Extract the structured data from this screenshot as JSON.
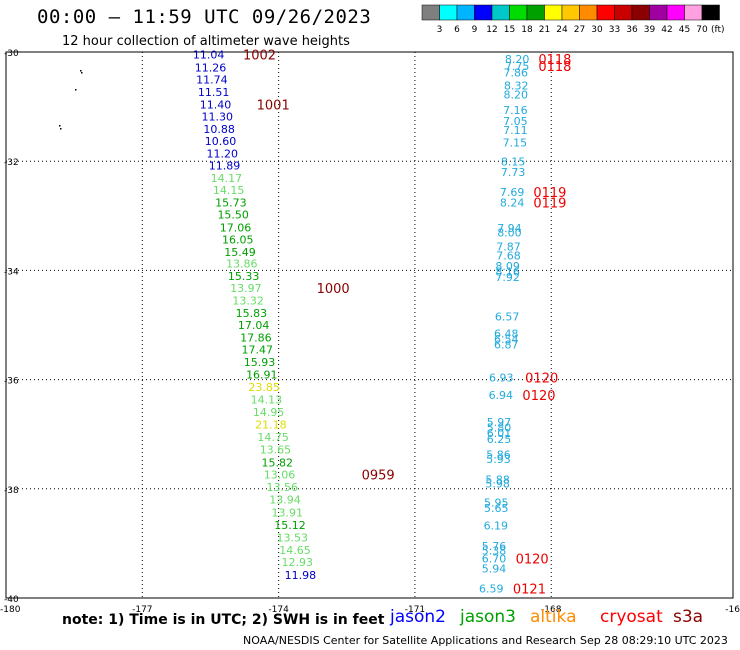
{
  "title": "00:00 — 11:59 UTC 09/26/2023",
  "subtitle": "12 hour collection of altimeter wave heights",
  "colorbar": {
    "colors": [
      "#7f7f7f",
      "#00ffff",
      "#00b4ff",
      "#0000ff",
      "#00c8c8",
      "#00dc00",
      "#00a000",
      "#ffff00",
      "#ffc800",
      "#ff8c00",
      "#ff0000",
      "#c80000",
      "#8b0000",
      "#a000a0",
      "#ff00ff",
      "#ffa0e0",
      "#000000"
    ],
    "labels": [
      "3",
      "6",
      "9",
      "12",
      "15",
      "18",
      "21",
      "24",
      "27",
      "30",
      "33",
      "36",
      "39",
      "42",
      "45",
      "70"
    ],
    "unit": "(ft)"
  },
  "axes": {
    "lat_labels": [
      "-30",
      "-32",
      "-34",
      "-36",
      "-38",
      "-40"
    ],
    "lon_labels": [
      "-180",
      "-177",
      "-174",
      "-171",
      "-168",
      "-16"
    ]
  },
  "observations": [
    {
      "t": "11.04",
      "c": "#0000c8",
      "lon": -175.54,
      "lat": -30.05
    },
    {
      "t": "11.26",
      "c": "#0000c8",
      "lon": -175.5,
      "lat": -30.28
    },
    {
      "t": "11.74",
      "c": "#0000c8",
      "lon": -175.47,
      "lat": -30.5
    },
    {
      "t": "11.51",
      "c": "#0000c8",
      "lon": -175.43,
      "lat": -30.73
    },
    {
      "t": "11.40",
      "c": "#0000c8",
      "lon": -175.39,
      "lat": -30.96
    },
    {
      "t": "11.30",
      "c": "#0000c8",
      "lon": -175.35,
      "lat": -31.18
    },
    {
      "t": "10.88",
      "c": "#0000c8",
      "lon": -175.31,
      "lat": -31.41
    },
    {
      "t": "10.60",
      "c": "#0000c8",
      "lon": -175.28,
      "lat": -31.63
    },
    {
      "t": "11.20",
      "c": "#0000c8",
      "lon": -175.24,
      "lat": -31.86
    },
    {
      "t": "11.89",
      "c": "#0000c8",
      "lon": -175.19,
      "lat": -32.08
    },
    {
      "t": "14.17",
      "c": "#66dd66",
      "lon": -175.15,
      "lat": -32.31
    },
    {
      "t": "14.15",
      "c": "#66dd66",
      "lon": -175.1,
      "lat": -32.53
    },
    {
      "t": "15.73",
      "c": "#00a000",
      "lon": -175.05,
      "lat": -32.76
    },
    {
      "t": "15.50",
      "c": "#00a000",
      "lon": -175.0,
      "lat": -32.98
    },
    {
      "t": "17.06",
      "c": "#00a000",
      "lon": -174.95,
      "lat": -33.21
    },
    {
      "t": "16.05",
      "c": "#00a000",
      "lon": -174.9,
      "lat": -33.43
    },
    {
      "t": "15.49",
      "c": "#00a000",
      "lon": -174.85,
      "lat": -33.66
    },
    {
      "t": "13.86",
      "c": "#66dd66",
      "lon": -174.81,
      "lat": -33.87
    },
    {
      "t": "15.33",
      "c": "#00a000",
      "lon": -174.77,
      "lat": -34.1
    },
    {
      "t": "13.97",
      "c": "#66dd66",
      "lon": -174.72,
      "lat": -34.32
    },
    {
      "t": "13.32",
      "c": "#66dd66",
      "lon": -174.67,
      "lat": -34.55
    },
    {
      "t": "15.83",
      "c": "#00a000",
      "lon": -174.6,
      "lat": -34.78
    },
    {
      "t": "17.04",
      "c": "#00a000",
      "lon": -174.55,
      "lat": -35.0
    },
    {
      "t": "17.86",
      "c": "#00a000",
      "lon": -174.5,
      "lat": -35.23
    },
    {
      "t": "17.47",
      "c": "#00a000",
      "lon": -174.47,
      "lat": -35.45
    },
    {
      "t": "15.93",
      "c": "#00a000",
      "lon": -174.42,
      "lat": -35.68
    },
    {
      "t": "16.91",
      "c": "#00a000",
      "lon": -174.37,
      "lat": -35.91
    },
    {
      "t": "23.85",
      "c": "#dddd00",
      "lon": -174.32,
      "lat": -36.14
    },
    {
      "t": "14.13",
      "c": "#66dd66",
      "lon": -174.27,
      "lat": -36.36
    },
    {
      "t": "14.95",
      "c": "#66dd66",
      "lon": -174.22,
      "lat": -36.59
    },
    {
      "t": "21.18",
      "c": "#dddd00",
      "lon": -174.17,
      "lat": -36.82
    },
    {
      "t": "14.75",
      "c": "#66dd66",
      "lon": -174.12,
      "lat": -37.05
    },
    {
      "t": "13.65",
      "c": "#66dd66",
      "lon": -174.07,
      "lat": -37.28
    },
    {
      "t": "15.82",
      "c": "#00a000",
      "lon": -174.03,
      "lat": -37.52
    },
    {
      "t": "13.06",
      "c": "#66dd66",
      "lon": -173.98,
      "lat": -37.74
    },
    {
      "t": "13.56",
      "c": "#66dd66",
      "lon": -173.92,
      "lat": -37.97
    },
    {
      "t": "13.94",
      "c": "#66dd66",
      "lon": -173.86,
      "lat": -38.2
    },
    {
      "t": "13.91",
      "c": "#66dd66",
      "lon": -173.81,
      "lat": -38.43
    },
    {
      "t": "15.12",
      "c": "#00a000",
      "lon": -173.75,
      "lat": -38.66
    },
    {
      "t": "13.53",
      "c": "#66dd66",
      "lon": -173.7,
      "lat": -38.89
    },
    {
      "t": "14.65",
      "c": "#66dd66",
      "lon": -173.64,
      "lat": -39.12
    },
    {
      "t": "12.93",
      "c": "#66dd66",
      "lon": -173.59,
      "lat": -39.34
    },
    {
      "t": "11.98",
      "c": "#0000c8",
      "lon": -173.52,
      "lat": -39.58
    },
    {
      "t": "8.20",
      "c": "#22aadd",
      "lon": -168.75,
      "lat": -30.13
    },
    {
      "t": "7.75",
      "c": "#22aadd",
      "lon": -168.75,
      "lat": -30.26
    },
    {
      "t": "7.86",
      "c": "#22aadd",
      "lon": -168.78,
      "lat": -30.38
    },
    {
      "t": "8.32",
      "c": "#22aadd",
      "lon": -168.77,
      "lat": -30.61
    },
    {
      "t": "8.20",
      "c": "#22aadd",
      "lon": -168.78,
      "lat": -30.78
    },
    {
      "t": "7.16",
      "c": "#22aadd",
      "lon": -168.79,
      "lat": -31.06
    },
    {
      "t": "7.05",
      "c": "#22aadd",
      "lon": -168.79,
      "lat": -31.26
    },
    {
      "t": "7.11",
      "c": "#22aadd",
      "lon": -168.79,
      "lat": -31.43
    },
    {
      "t": "7.15",
      "c": "#22aadd",
      "lon": -168.8,
      "lat": -31.66
    },
    {
      "t": "8.15",
      "c": "#22aadd",
      "lon": -168.84,
      "lat": -32.01
    },
    {
      "t": "7.73",
      "c": "#22aadd",
      "lon": -168.84,
      "lat": -32.2
    },
    {
      "t": "7.69",
      "c": "#22aadd",
      "lon": -168.86,
      "lat": -32.56
    },
    {
      "t": "8.24",
      "c": "#22aadd",
      "lon": -168.86,
      "lat": -32.76
    },
    {
      "t": "7.94",
      "c": "#22aadd",
      "lon": -168.92,
      "lat": -33.22
    },
    {
      "t": "8.00",
      "c": "#22aadd",
      "lon": -168.92,
      "lat": -33.31
    },
    {
      "t": "7.87",
      "c": "#22aadd",
      "lon": -168.94,
      "lat": -33.56
    },
    {
      "t": "7.68",
      "c": "#22aadd",
      "lon": -168.94,
      "lat": -33.73
    },
    {
      "t": "8.09",
      "c": "#22aadd",
      "lon": -168.96,
      "lat": -33.92
    },
    {
      "t": "8.16",
      "c": "#22aadd",
      "lon": -168.96,
      "lat": -34.02
    },
    {
      "t": "7.92",
      "c": "#22aadd",
      "lon": -168.96,
      "lat": -34.12
    },
    {
      "t": "6.57",
      "c": "#22aadd",
      "lon": -168.97,
      "lat": -34.84
    },
    {
      "t": "6.48",
      "c": "#22aadd",
      "lon": -168.99,
      "lat": -35.16
    },
    {
      "t": "6.54",
      "c": "#22aadd",
      "lon": -168.99,
      "lat": -35.26
    },
    {
      "t": "6.87",
      "c": "#22aadd",
      "lon": -168.99,
      "lat": -35.36
    },
    {
      "t": "6.93",
      "c": "#22aadd",
      "lon": -169.1,
      "lat": -35.96
    },
    {
      "t": "6.94",
      "c": "#22aadd",
      "lon": -169.11,
      "lat": -36.28
    },
    {
      "t": "5.97",
      "c": "#22aadd",
      "lon": -169.15,
      "lat": -36.78
    },
    {
      "t": "5.80",
      "c": "#22aadd",
      "lon": -169.15,
      "lat": -36.88
    },
    {
      "t": "6.01",
      "c": "#22aadd",
      "lon": -169.15,
      "lat": -36.98
    },
    {
      "t": "6.25",
      "c": "#22aadd",
      "lon": -169.15,
      "lat": -37.09
    },
    {
      "t": "5.86",
      "c": "#22aadd",
      "lon": -169.16,
      "lat": -37.37
    },
    {
      "t": "5.93",
      "c": "#22aadd",
      "lon": -169.16,
      "lat": -37.45
    },
    {
      "t": "5.88",
      "c": "#22aadd",
      "lon": -169.18,
      "lat": -37.83
    },
    {
      "t": "5.98",
      "c": "#22aadd",
      "lon": -169.18,
      "lat": -37.9
    },
    {
      "t": "5.95",
      "c": "#22aadd",
      "lon": -169.21,
      "lat": -38.25
    },
    {
      "t": "5.65",
      "c": "#22aadd",
      "lon": -169.21,
      "lat": -38.35
    },
    {
      "t": "6.19",
      "c": "#22aadd",
      "lon": -169.22,
      "lat": -38.67
    },
    {
      "t": "5.76",
      "c": "#22aadd",
      "lon": -169.26,
      "lat": -39.05
    },
    {
      "t": "5.38",
      "c": "#22aadd",
      "lon": -169.26,
      "lat": -39.13
    },
    {
      "t": "6.70",
      "c": "#22aadd",
      "lon": -169.26,
      "lat": -39.28
    },
    {
      "t": "5.94",
      "c": "#22aadd",
      "lon": -169.26,
      "lat": -39.46
    },
    {
      "t": "6.59",
      "c": "#22aadd",
      "lon": -169.32,
      "lat": -39.83
    }
  ],
  "time_labels": [
    {
      "t": "1002",
      "c": "#8b0000",
      "lon": -174.42,
      "lat": -30.05
    },
    {
      "t": "1001",
      "c": "#8b0000",
      "lon": -174.12,
      "lat": -30.96
    },
    {
      "t": "1000",
      "c": "#8b0000",
      "lon": -172.8,
      "lat": -34.32
    },
    {
      "t": "0959",
      "c": "#8b0000",
      "lon": -171.81,
      "lat": -37.74
    },
    {
      "t": "0118",
      "c": "#ee0000",
      "lon": -167.92,
      "lat": -30.13
    },
    {
      "t": "0118",
      "c": "#ee0000",
      "lon": -167.92,
      "lat": -30.26
    },
    {
      "t": "0119",
      "c": "#ee0000",
      "lon": -168.03,
      "lat": -32.56
    },
    {
      "t": "0119",
      "c": "#ee0000",
      "lon": -168.03,
      "lat": -32.76
    },
    {
      "t": "0120",
      "c": "#ee0000",
      "lon": -168.21,
      "lat": -35.96
    },
    {
      "t": "0120",
      "c": "#ee0000",
      "lon": -168.27,
      "lat": -36.28
    },
    {
      "t": "0120",
      "c": "#ee0000",
      "lon": -168.42,
      "lat": -39.28
    },
    {
      "t": "0121",
      "c": "#ee0000",
      "lon": -168.48,
      "lat": -39.83
    }
  ],
  "note": "note:  1) Time is in UTC; 2) SWH is in feet",
  "satellites": [
    {
      "name": "jason2",
      "color": "#0000ff"
    },
    {
      "name": "jason3",
      "color": "#00a000"
    },
    {
      "name": "altika",
      "color": "#ff8c00"
    },
    {
      "name": "cryosat",
      "color": "#ff0000"
    },
    {
      "name": "s3a",
      "color": "#8b0000"
    }
  ],
  "footer": {
    "center": "NOAA/NESDIS Center for Satellite Applications and Research",
    "timestamp": "Sep 28 08:29:10 UTC 2023"
  }
}
